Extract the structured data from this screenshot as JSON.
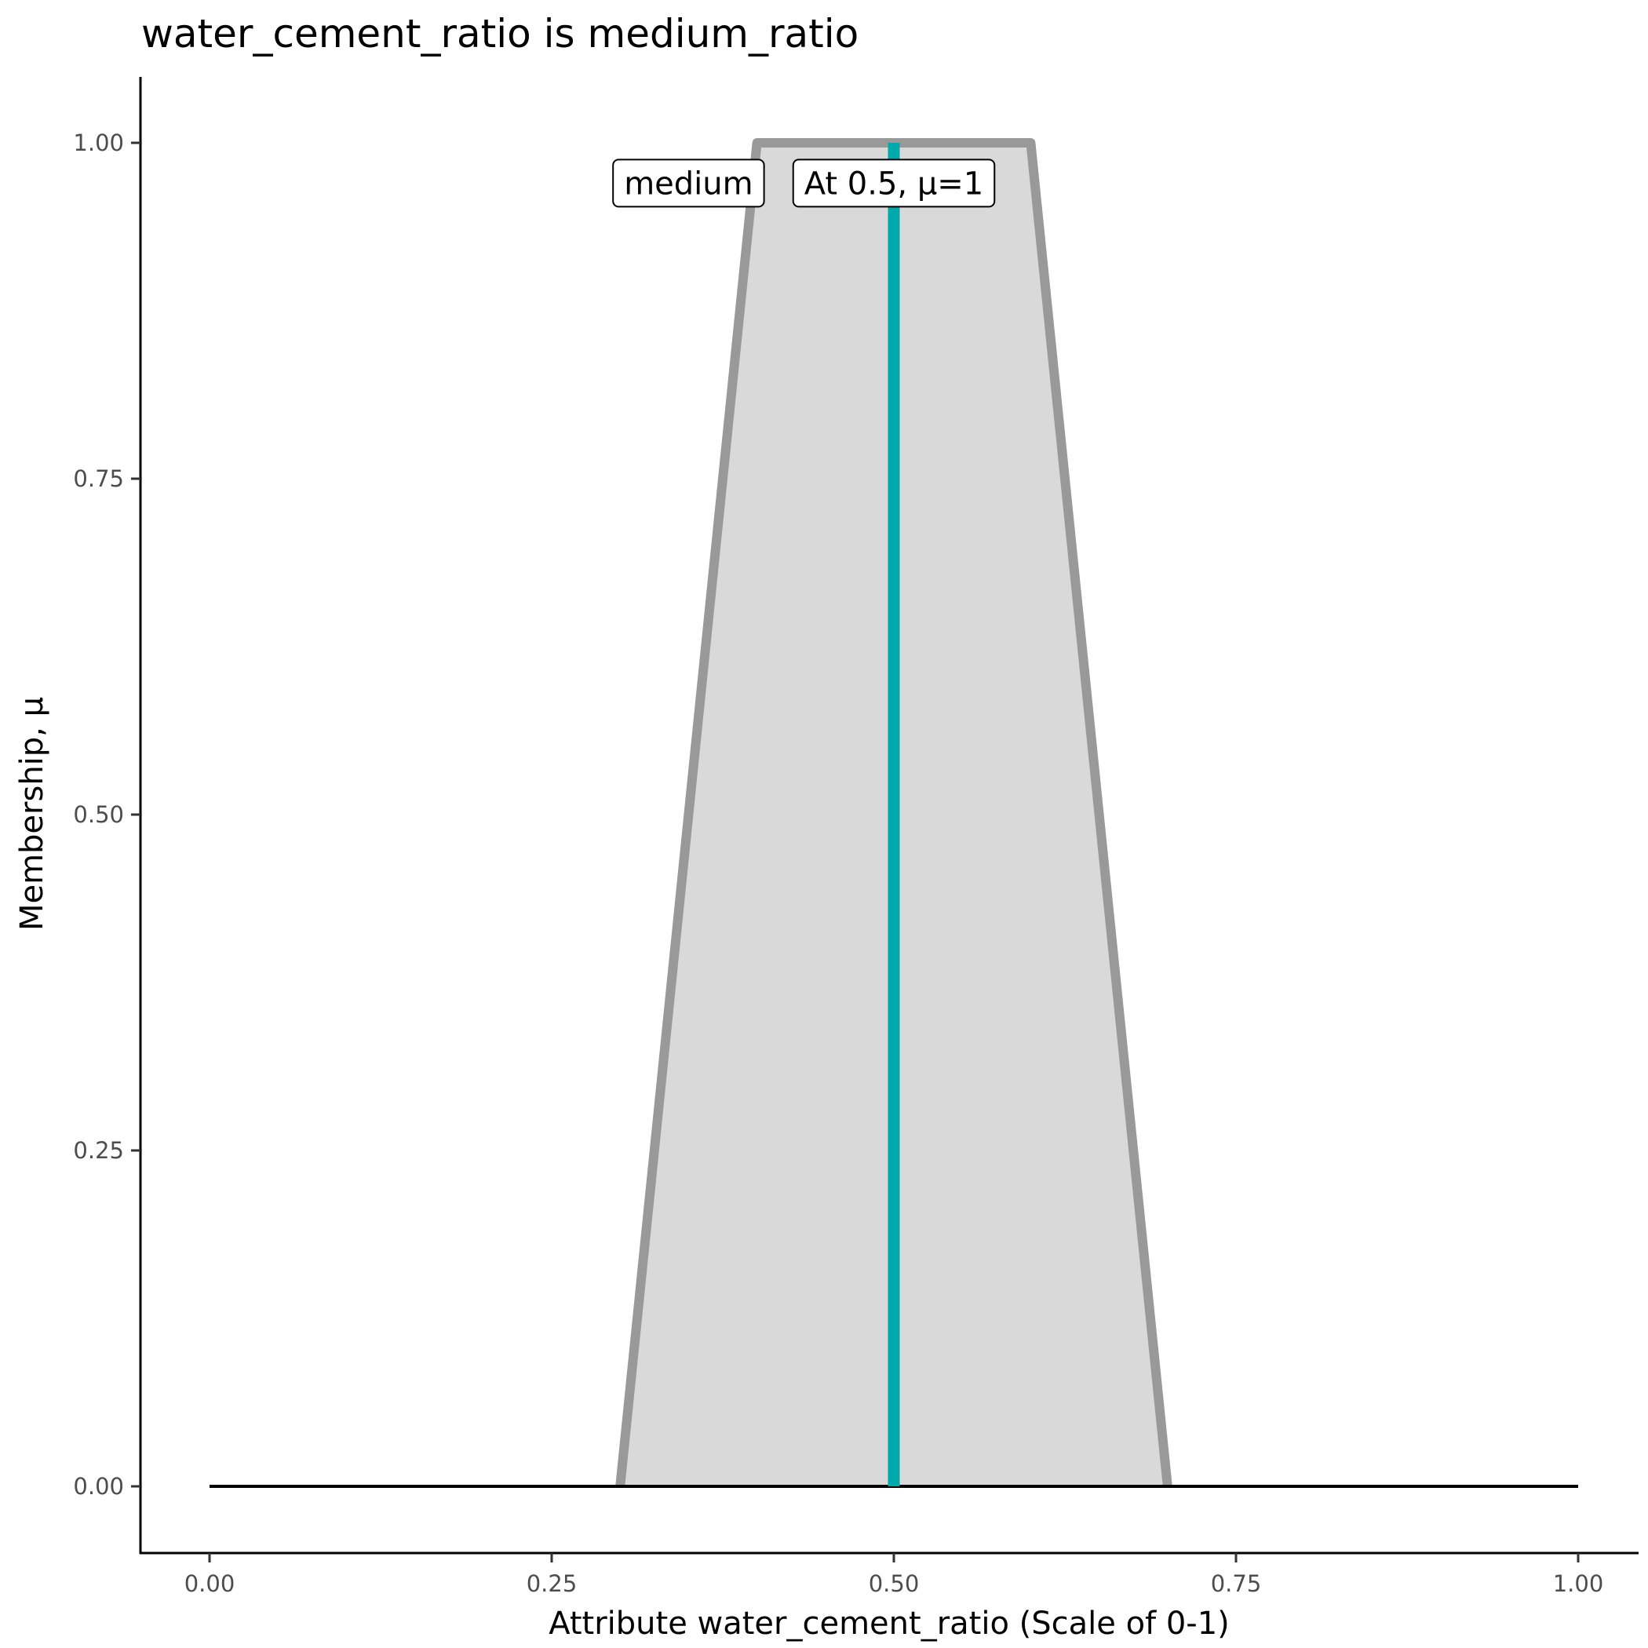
{
  "chart_data": {
    "type": "area",
    "title": "water_cement_ratio is medium_ratio",
    "xlabel": "Attribute water_cement_ratio (Scale of 0-1)",
    "ylabel": "Membership, μ",
    "xlim": [
      -0.05,
      1.05
    ],
    "ylim": [
      -0.05,
      1.05
    ],
    "x_ticks": [
      "0.00",
      "0.25",
      "0.50",
      "0.75",
      "1.00"
    ],
    "y_ticks": [
      "0.00",
      "0.25",
      "0.50",
      "0.75",
      "1.00"
    ],
    "grid": false,
    "membership_function": {
      "name": "medium",
      "x": [
        0.3,
        0.4,
        0.6,
        0.7
      ],
      "y": [
        0,
        1,
        1,
        0
      ],
      "fill": "#d9d9d9",
      "stroke": "#999999"
    },
    "baseline": {
      "x": [
        0,
        1
      ],
      "y": [
        0,
        0
      ],
      "color": "#000000"
    },
    "marker": {
      "x": 0.5,
      "mu": 1,
      "color": "#00aaaa"
    },
    "labels": [
      {
        "text": "medium",
        "x": 0.35,
        "y": 0.97
      },
      {
        "text": "At 0.5, μ=1",
        "x": 0.5,
        "y": 0.97
      }
    ]
  }
}
